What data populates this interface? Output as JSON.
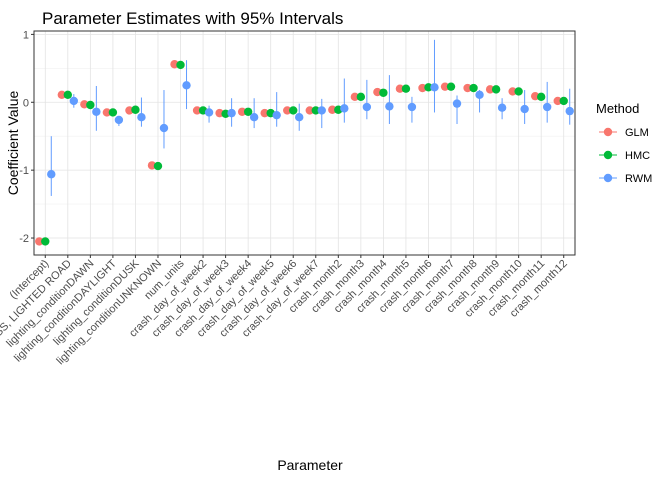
{
  "chart_data": {
    "type": "scatter",
    "title": "Parameter Estimates with 95% Intervals",
    "xlabel": "Parameter",
    "ylabel": "Coefficient Value",
    "ylim": [
      -2.25,
      1.05
    ],
    "yticks": [
      -2,
      -1,
      0,
      1
    ],
    "grid": true,
    "legend_position": "right",
    "legend_title": "Method",
    "categories": [
      "(Intercept)",
      "lighting_conditionDARKNESS, LIGHTED ROAD",
      "lighting_conditionDAWN",
      "lighting_conditionDAYLIGHT",
      "lighting_conditionDUSK",
      "lighting_conditionUNKNOWN",
      "num_units",
      "crash_day_of_week2",
      "crash_day_of_week3",
      "crash_day_of_week4",
      "crash_day_of_week5",
      "crash_day_of_week6",
      "crash_day_of_week7",
      "crash_month2",
      "crash_month3",
      "crash_month4",
      "crash_month5",
      "crash_month6",
      "crash_month7",
      "crash_month8",
      "crash_month9",
      "crash_month10",
      "crash_month11",
      "crash_month12"
    ],
    "series": [
      {
        "name": "GLM",
        "color": "#F8766D",
        "values": [
          -2.05,
          0.11,
          -0.03,
          -0.15,
          -0.12,
          -0.93,
          0.56,
          -0.12,
          -0.16,
          -0.14,
          -0.16,
          -0.12,
          -0.12,
          -0.11,
          0.08,
          0.15,
          0.2,
          0.21,
          0.23,
          0.21,
          0.19,
          0.16,
          0.09,
          0.02
        ],
        "lower": [
          -2.05,
          0.11,
          -0.03,
          -0.15,
          -0.12,
          -0.93,
          0.56,
          -0.12,
          -0.16,
          -0.14,
          -0.16,
          -0.12,
          -0.12,
          -0.11,
          0.08,
          0.15,
          0.2,
          0.21,
          0.23,
          0.21,
          0.19,
          0.16,
          0.09,
          0.02
        ],
        "upper": [
          -2.05,
          0.11,
          -0.03,
          -0.15,
          -0.12,
          -0.93,
          0.56,
          -0.12,
          -0.16,
          -0.14,
          -0.16,
          -0.12,
          -0.12,
          -0.11,
          0.08,
          0.15,
          0.2,
          0.21,
          0.23,
          0.21,
          0.19,
          0.16,
          0.09,
          0.02
        ]
      },
      {
        "name": "HMC",
        "color": "#00BA38",
        "values": [
          -2.05,
          0.11,
          -0.04,
          -0.15,
          -0.11,
          -0.94,
          0.55,
          -0.12,
          -0.17,
          -0.14,
          -0.16,
          -0.12,
          -0.12,
          -0.11,
          0.08,
          0.14,
          0.2,
          0.22,
          0.23,
          0.21,
          0.19,
          0.16,
          0.08,
          0.02
        ],
        "lower": [
          -2.05,
          0.11,
          -0.04,
          -0.15,
          -0.11,
          -0.94,
          0.55,
          -0.12,
          -0.17,
          -0.14,
          -0.16,
          -0.12,
          -0.12,
          -0.11,
          0.08,
          0.14,
          0.2,
          0.22,
          0.23,
          0.21,
          0.19,
          0.16,
          0.08,
          0.02
        ],
        "upper": [
          -2.05,
          0.11,
          -0.04,
          -0.15,
          -0.11,
          -0.94,
          0.55,
          -0.12,
          -0.17,
          -0.14,
          -0.16,
          -0.12,
          -0.12,
          -0.11,
          0.08,
          0.14,
          0.2,
          0.22,
          0.23,
          0.21,
          0.19,
          0.16,
          0.08,
          0.02
        ]
      },
      {
        "name": "RWM",
        "color": "#619CFF",
        "values": [
          -1.06,
          0.02,
          -0.14,
          -0.26,
          -0.22,
          -0.38,
          0.25,
          -0.15,
          -0.16,
          -0.22,
          -0.19,
          -0.22,
          -0.12,
          -0.09,
          -0.07,
          -0.06,
          -0.07,
          0.22,
          -0.02,
          0.11,
          -0.08,
          -0.1,
          -0.07,
          -0.13
        ],
        "lower": [
          -1.38,
          -0.08,
          -0.42,
          -0.35,
          -0.36,
          -0.68,
          -0.1,
          -0.3,
          -0.36,
          -0.38,
          -0.36,
          -0.42,
          -0.38,
          -0.3,
          -0.25,
          -0.32,
          -0.3,
          -0.15,
          -0.32,
          -0.15,
          -0.25,
          -0.32,
          -0.3,
          -0.33
        ],
        "upper": [
          -0.5,
          0.12,
          0.24,
          -0.2,
          0.07,
          0.18,
          0.62,
          -0.05,
          0.06,
          0.06,
          0.15,
          -0.02,
          0.05,
          0.35,
          0.33,
          0.4,
          0.08,
          0.92,
          0.1,
          0.18,
          0.06,
          0.18,
          0.3,
          0.2
        ]
      }
    ]
  }
}
